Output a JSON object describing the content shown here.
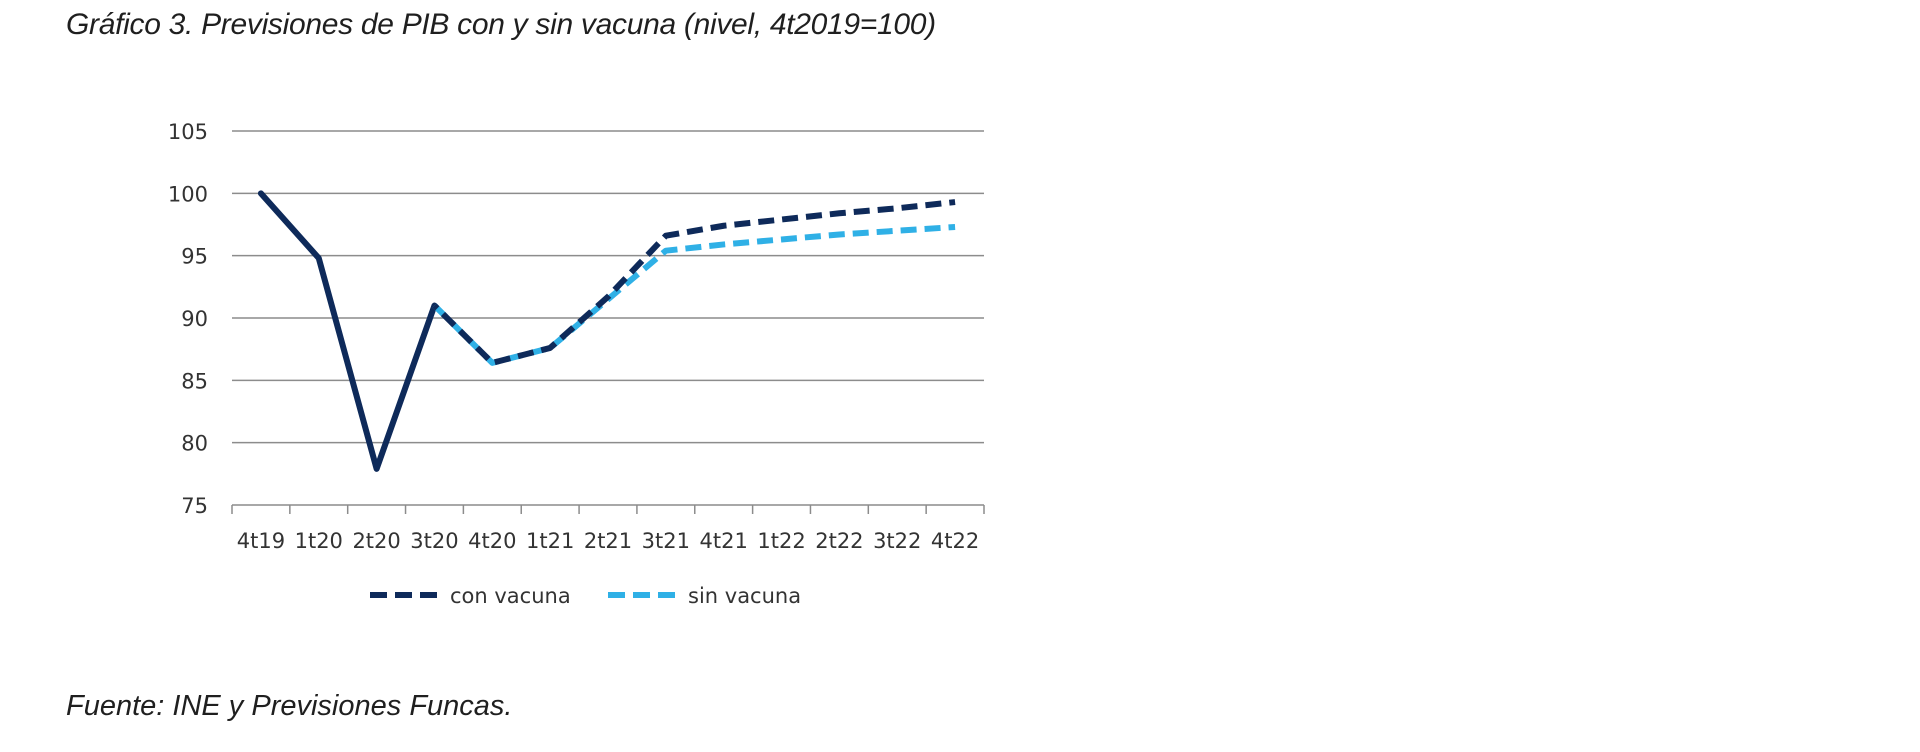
{
  "page": {
    "title": "Gráfico 3. Previsiones de PIB con y sin vacuna (nivel, 4t2019=100)",
    "source": "Fuente: INE y Previsiones Funcas."
  },
  "chart_data": {
    "type": "line",
    "categories": [
      "4t19",
      "1t20",
      "2t20",
      "3t20",
      "4t20",
      "1t21",
      "2t21",
      "3t21",
      "4t21",
      "1t22",
      "2t22",
      "3t22",
      "4t22"
    ],
    "ylim": [
      75,
      105
    ],
    "yticks": [
      75,
      80,
      85,
      90,
      95,
      100,
      105
    ],
    "ytick_labels": [
      "75",
      "80",
      "85",
      "90",
      "95",
      "100",
      "105"
    ],
    "grid": true,
    "legend_position": "bottom",
    "historical_through_index": 3,
    "series": [
      {
        "name": "con vacuna",
        "color": "#0e2a5a",
        "values": [
          100,
          94.8,
          77.9,
          91,
          86.4,
          87.6,
          91.7,
          96.6,
          97.4,
          97.9,
          98.4,
          98.8,
          99.3
        ]
      },
      {
        "name": "sin vacuna",
        "color": "#2fb0e6",
        "values": [
          100,
          94.8,
          77.9,
          91,
          86.4,
          87.6,
          91.5,
          95.4,
          95.9,
          96.3,
          96.7,
          97.0,
          97.3
        ]
      }
    ]
  }
}
